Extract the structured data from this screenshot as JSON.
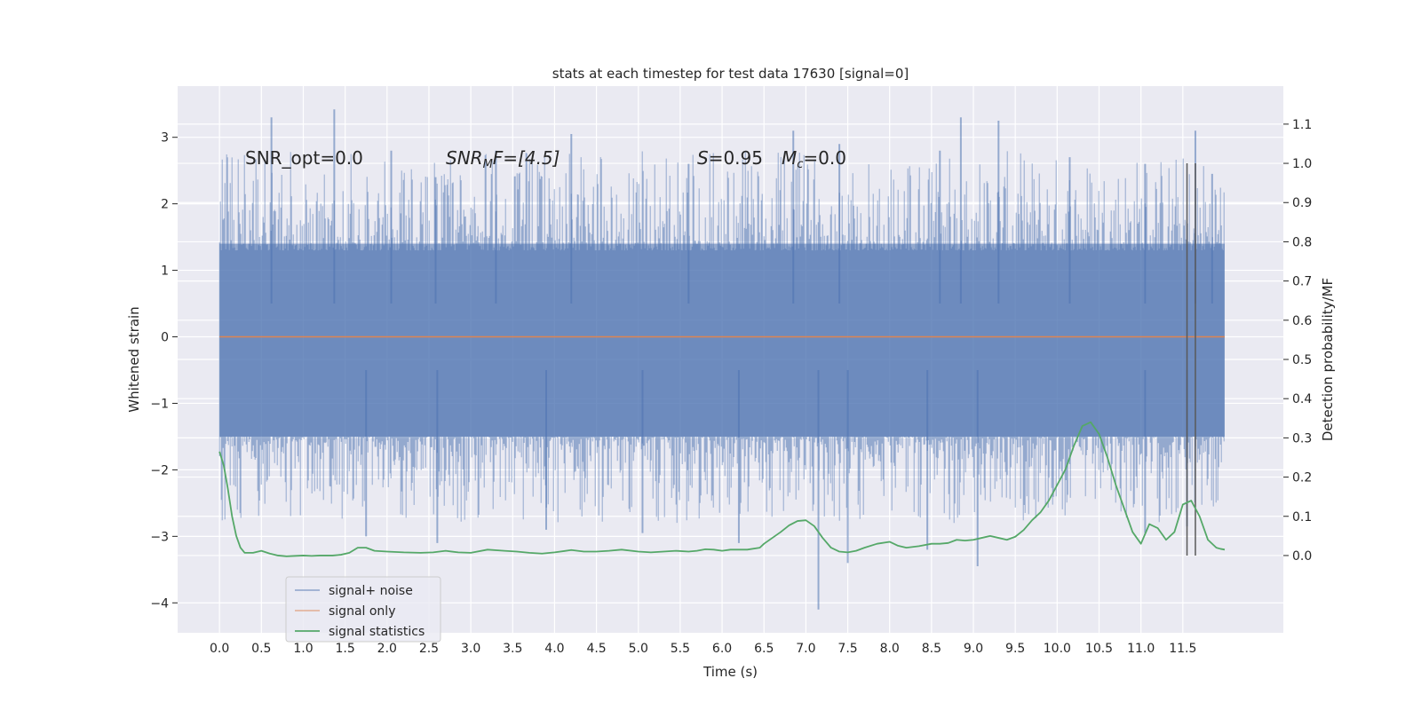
{
  "chart_data": {
    "type": "line",
    "title": "stats at each timestep for test data 17630 [signal=0]",
    "xlabel": "Time (s)",
    "ylabel": "Whitened strain",
    "y2label": "Detection probability/MF",
    "xlim": [
      -0.5,
      12.7
    ],
    "ylim": [
      -4.45,
      3.77
    ],
    "y2lim": [
      -0.197,
      1.197
    ],
    "x_ticks": [
      0.0,
      0.5,
      1.0,
      1.5,
      2.0,
      2.5,
      3.0,
      3.5,
      4.0,
      4.5,
      5.0,
      5.5,
      6.0,
      6.5,
      7.0,
      7.5,
      8.0,
      8.5,
      9.0,
      9.5,
      10.0,
      10.5,
      11.0,
      11.5
    ],
    "x_tick_labels": [
      "0.0",
      "0.5",
      "1.0",
      "1.5",
      "2.0",
      "2.5",
      "3.0",
      "3.5",
      "4.0",
      "4.5",
      "5.0",
      "5.5",
      "6.0",
      "6.5",
      "7.0",
      "7.5",
      "8.0",
      "8.5",
      "9.0",
      "9.5",
      "10.0",
      "10.5",
      "11.0",
      "11.5"
    ],
    "y_ticks": [
      3,
      2,
      1,
      0,
      -1,
      -2,
      -3,
      -4
    ],
    "y_tick_labels": [
      "3",
      "2",
      "1",
      "0",
      "−1",
      "−2",
      "−3",
      "−4"
    ],
    "y2_ticks": [
      1.1,
      1.0,
      0.9,
      0.8,
      0.7,
      0.6,
      0.5,
      0.4,
      0.3,
      0.2,
      0.1,
      0.0
    ],
    "y2_tick_labels": [
      "1.1",
      "1.0",
      "0.9",
      "0.8",
      "0.7",
      "0.6",
      "0.5",
      "0.4",
      "0.3",
      "0.2",
      "0.1",
      "0.0"
    ],
    "grid": true,
    "legend_position": "lower-left",
    "annotations": {
      "snr_opt": "SNR_opt=0.0",
      "snr_mf_main": "SNR",
      "snr_mf_sub": "M",
      "snr_mf_rest": "F=[4.5]",
      "s_main": "S",
      "s_rest": "=0.95",
      "mc_main": "M",
      "mc_sub": "c",
      "mc_rest": "=0.0"
    },
    "series": [
      {
        "name": "signal+ noise",
        "color": "#4c72b0",
        "kind": "noise",
        "x_start": 0.0,
        "x_end": 12.0,
        "envelope_low": -1.5,
        "envelope_high": 1.4,
        "spike_peaks": [
          [
            0.62,
            3.3
          ],
          [
            1.37,
            3.42
          ],
          [
            2.05,
            2.8
          ],
          [
            2.58,
            2.4
          ],
          [
            3.3,
            2.8
          ],
          [
            4.2,
            3.05
          ],
          [
            5.6,
            2.6
          ],
          [
            6.85,
            3.1
          ],
          [
            7.4,
            2.9
          ],
          [
            8.6,
            2.8
          ],
          [
            8.85,
            3.3
          ],
          [
            9.3,
            3.25
          ],
          [
            10.15,
            2.7
          ],
          [
            11.05,
            2.6
          ],
          [
            11.65,
            3.1
          ],
          [
            11.85,
            2.45
          ]
        ],
        "spike_troughs": [
          [
            1.75,
            -3.0
          ],
          [
            2.6,
            -3.1
          ],
          [
            3.9,
            -2.9
          ],
          [
            5.05,
            -2.95
          ],
          [
            6.2,
            -3.1
          ],
          [
            7.15,
            -4.1
          ],
          [
            7.5,
            -3.4
          ],
          [
            8.45,
            -3.2
          ],
          [
            9.05,
            -3.45
          ],
          [
            11.05,
            -2.95
          ],
          [
            11.55,
            -2.85
          ]
        ]
      },
      {
        "name": "signal only",
        "color": "#dd8452",
        "kind": "line",
        "points": [
          [
            0.0,
            0.0
          ],
          [
            12.0,
            0.0
          ]
        ]
      },
      {
        "name": "signal statistics",
        "color": "#55a868",
        "kind": "line",
        "axis": "right",
        "points": [
          [
            0.0,
            0.265
          ],
          [
            0.05,
            0.23
          ],
          [
            0.1,
            0.17
          ],
          [
            0.15,
            0.1
          ],
          [
            0.2,
            0.05
          ],
          [
            0.25,
            0.02
          ],
          [
            0.3,
            0.007
          ],
          [
            0.4,
            0.007
          ],
          [
            0.5,
            0.012
          ],
          [
            0.6,
            0.005
          ],
          [
            0.7,
            0.0
          ],
          [
            0.8,
            -0.002
          ],
          [
            1.0,
            0.0
          ],
          [
            1.1,
            -0.001
          ],
          [
            1.2,
            0.0
          ],
          [
            1.35,
            0.0
          ],
          [
            1.45,
            0.002
          ],
          [
            1.55,
            0.007
          ],
          [
            1.65,
            0.02
          ],
          [
            1.75,
            0.02
          ],
          [
            1.85,
            0.012
          ],
          [
            2.0,
            0.01
          ],
          [
            2.2,
            0.008
          ],
          [
            2.4,
            0.007
          ],
          [
            2.55,
            0.008
          ],
          [
            2.7,
            0.012
          ],
          [
            2.85,
            0.008
          ],
          [
            3.0,
            0.007
          ],
          [
            3.2,
            0.015
          ],
          [
            3.4,
            0.012
          ],
          [
            3.55,
            0.01
          ],
          [
            3.7,
            0.007
          ],
          [
            3.85,
            0.005
          ],
          [
            4.0,
            0.008
          ],
          [
            4.2,
            0.014
          ],
          [
            4.35,
            0.01
          ],
          [
            4.5,
            0.01
          ],
          [
            4.65,
            0.012
          ],
          [
            4.8,
            0.015
          ],
          [
            5.0,
            0.01
          ],
          [
            5.15,
            0.008
          ],
          [
            5.3,
            0.01
          ],
          [
            5.45,
            0.012
          ],
          [
            5.6,
            0.01
          ],
          [
            5.7,
            0.012
          ],
          [
            5.8,
            0.016
          ],
          [
            5.9,
            0.015
          ],
          [
            6.0,
            0.012
          ],
          [
            6.1,
            0.015
          ],
          [
            6.2,
            0.015
          ],
          [
            6.3,
            0.015
          ],
          [
            6.45,
            0.02
          ],
          [
            6.5,
            0.03
          ],
          [
            6.6,
            0.045
          ],
          [
            6.7,
            0.06
          ],
          [
            6.8,
            0.077
          ],
          [
            6.9,
            0.088
          ],
          [
            7.0,
            0.09
          ],
          [
            7.1,
            0.075
          ],
          [
            7.2,
            0.045
          ],
          [
            7.3,
            0.02
          ],
          [
            7.4,
            0.01
          ],
          [
            7.5,
            0.008
          ],
          [
            7.6,
            0.012
          ],
          [
            7.7,
            0.02
          ],
          [
            7.85,
            0.03
          ],
          [
            8.0,
            0.035
          ],
          [
            8.1,
            0.025
          ],
          [
            8.2,
            0.02
          ],
          [
            8.35,
            0.024
          ],
          [
            8.5,
            0.03
          ],
          [
            8.6,
            0.03
          ],
          [
            8.7,
            0.032
          ],
          [
            8.8,
            0.04
          ],
          [
            8.9,
            0.038
          ],
          [
            9.0,
            0.04
          ],
          [
            9.1,
            0.045
          ],
          [
            9.2,
            0.05
          ],
          [
            9.3,
            0.045
          ],
          [
            9.4,
            0.04
          ],
          [
            9.5,
            0.048
          ],
          [
            9.6,
            0.065
          ],
          [
            9.7,
            0.09
          ],
          [
            9.8,
            0.11
          ],
          [
            9.9,
            0.14
          ],
          [
            10.0,
            0.18
          ],
          [
            10.1,
            0.22
          ],
          [
            10.2,
            0.28
          ],
          [
            10.3,
            0.33
          ],
          [
            10.4,
            0.34
          ],
          [
            10.5,
            0.31
          ],
          [
            10.6,
            0.25
          ],
          [
            10.7,
            0.18
          ],
          [
            10.8,
            0.12
          ],
          [
            10.9,
            0.06
          ],
          [
            11.0,
            0.03
          ],
          [
            11.1,
            0.08
          ],
          [
            11.2,
            0.07
          ],
          [
            11.3,
            0.04
          ],
          [
            11.4,
            0.06
          ],
          [
            11.5,
            0.13
          ],
          [
            11.6,
            0.14
          ],
          [
            11.7,
            0.1
          ],
          [
            11.8,
            0.04
          ],
          [
            11.9,
            0.02
          ],
          [
            11.95,
            0.017
          ],
          [
            12.0,
            0.015
          ]
        ]
      }
    ],
    "vlines": [
      {
        "x": 11.55,
        "color": "#595959"
      },
      {
        "x": 11.65,
        "color": "#595959"
      }
    ]
  }
}
